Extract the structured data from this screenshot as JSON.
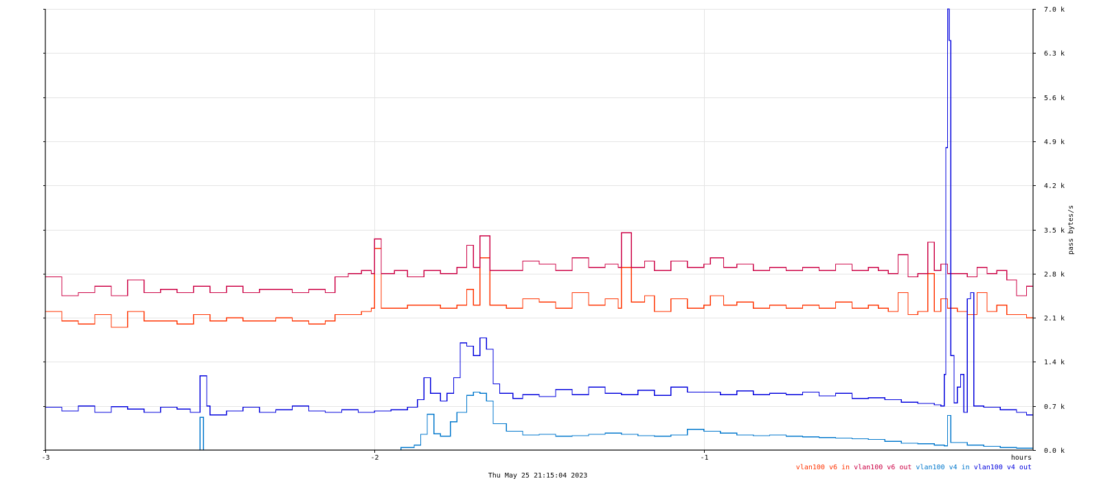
{
  "chart_data": {
    "type": "line",
    "ylabel": "pass bytes/s",
    "xlabel": "hours",
    "timestamp": "Thu May 25 21:15:04 2023",
    "xlim": [
      -3,
      0
    ],
    "ylim": [
      0,
      7000
    ],
    "x_ticks": [
      {
        "value": -3,
        "label": "-3"
      },
      {
        "value": -2,
        "label": "-2"
      },
      {
        "value": -1,
        "label": "-1"
      }
    ],
    "y_ticks": [
      {
        "value": 0,
        "label": "0.0 k"
      },
      {
        "value": 700,
        "label": "0.7 k"
      },
      {
        "value": 1400,
        "label": "1.4 k"
      },
      {
        "value": 2100,
        "label": "2.1 k"
      },
      {
        "value": 2800,
        "label": "2.8 k"
      },
      {
        "value": 3500,
        "label": "3.5 k"
      },
      {
        "value": 4200,
        "label": "4.2 k"
      },
      {
        "value": 4900,
        "label": "4.9 k"
      },
      {
        "value": 5600,
        "label": "5.6 k"
      },
      {
        "value": 6300,
        "label": "6.3 k"
      },
      {
        "value": 7000,
        "label": "7.0 k"
      }
    ],
    "grid": true,
    "legend_position": "bottom-right",
    "series": [
      {
        "name": "vlan100 v6 in",
        "color": "#ff3300",
        "points": [
          [
            -3.0,
            2200
          ],
          [
            -2.95,
            2050
          ],
          [
            -2.9,
            2000
          ],
          [
            -2.85,
            2150
          ],
          [
            -2.8,
            1950
          ],
          [
            -2.75,
            2200
          ],
          [
            -2.7,
            2050
          ],
          [
            -2.65,
            2050
          ],
          [
            -2.6,
            2000
          ],
          [
            -2.55,
            2150
          ],
          [
            -2.5,
            2050
          ],
          [
            -2.45,
            2100
          ],
          [
            -2.4,
            2050
          ],
          [
            -2.35,
            2050
          ],
          [
            -2.3,
            2100
          ],
          [
            -2.25,
            2050
          ],
          [
            -2.2,
            2000
          ],
          [
            -2.15,
            2050
          ],
          [
            -2.12,
            2150
          ],
          [
            -2.08,
            2150
          ],
          [
            -2.04,
            2200
          ],
          [
            -2.01,
            2250
          ],
          [
            -2.0,
            3200
          ],
          [
            -1.98,
            2250
          ],
          [
            -1.94,
            2250
          ],
          [
            -1.9,
            2300
          ],
          [
            -1.85,
            2300
          ],
          [
            -1.8,
            2250
          ],
          [
            -1.75,
            2300
          ],
          [
            -1.72,
            2550
          ],
          [
            -1.7,
            2300
          ],
          [
            -1.68,
            3050
          ],
          [
            -1.65,
            2300
          ],
          [
            -1.6,
            2250
          ],
          [
            -1.55,
            2400
          ],
          [
            -1.5,
            2350
          ],
          [
            -1.45,
            2250
          ],
          [
            -1.4,
            2500
          ],
          [
            -1.35,
            2300
          ],
          [
            -1.3,
            2400
          ],
          [
            -1.26,
            2250
          ],
          [
            -1.25,
            2900
          ],
          [
            -1.22,
            2350
          ],
          [
            -1.18,
            2450
          ],
          [
            -1.15,
            2200
          ],
          [
            -1.1,
            2400
          ],
          [
            -1.05,
            2250
          ],
          [
            -1.0,
            2300
          ],
          [
            -0.98,
            2450
          ],
          [
            -0.94,
            2300
          ],
          [
            -0.9,
            2350
          ],
          [
            -0.85,
            2250
          ],
          [
            -0.8,
            2300
          ],
          [
            -0.75,
            2250
          ],
          [
            -0.7,
            2300
          ],
          [
            -0.65,
            2250
          ],
          [
            -0.6,
            2350
          ],
          [
            -0.55,
            2250
          ],
          [
            -0.5,
            2300
          ],
          [
            -0.47,
            2250
          ],
          [
            -0.44,
            2200
          ],
          [
            -0.41,
            2500
          ],
          [
            -0.38,
            2150
          ],
          [
            -0.35,
            2200
          ],
          [
            -0.32,
            2800
          ],
          [
            -0.3,
            2200
          ],
          [
            -0.28,
            2400
          ],
          [
            -0.26,
            2250
          ],
          [
            -0.23,
            2200
          ],
          [
            -0.2,
            2150
          ],
          [
            -0.17,
            2500
          ],
          [
            -0.14,
            2200
          ],
          [
            -0.11,
            2300
          ],
          [
            -0.08,
            2150
          ],
          [
            -0.05,
            2150
          ],
          [
            -0.02,
            2100
          ],
          [
            0.0,
            2100
          ]
        ]
      },
      {
        "name": "vlan100 v6 out",
        "color": "#cc0044",
        "points": [
          [
            -3.0,
            2750
          ],
          [
            -2.95,
            2450
          ],
          [
            -2.9,
            2500
          ],
          [
            -2.85,
            2600
          ],
          [
            -2.8,
            2450
          ],
          [
            -2.75,
            2700
          ],
          [
            -2.7,
            2500
          ],
          [
            -2.65,
            2550
          ],
          [
            -2.6,
            2500
          ],
          [
            -2.55,
            2600
          ],
          [
            -2.5,
            2500
          ],
          [
            -2.45,
            2600
          ],
          [
            -2.4,
            2500
          ],
          [
            -2.35,
            2550
          ],
          [
            -2.3,
            2550
          ],
          [
            -2.25,
            2500
          ],
          [
            -2.2,
            2550
          ],
          [
            -2.15,
            2500
          ],
          [
            -2.12,
            2750
          ],
          [
            -2.08,
            2800
          ],
          [
            -2.04,
            2850
          ],
          [
            -2.01,
            2800
          ],
          [
            -2.0,
            3350
          ],
          [
            -1.98,
            2800
          ],
          [
            -1.94,
            2850
          ],
          [
            -1.9,
            2750
          ],
          [
            -1.85,
            2850
          ],
          [
            -1.8,
            2800
          ],
          [
            -1.75,
            2900
          ],
          [
            -1.72,
            3250
          ],
          [
            -1.7,
            2900
          ],
          [
            -1.68,
            3400
          ],
          [
            -1.65,
            2850
          ],
          [
            -1.6,
            2850
          ],
          [
            -1.55,
            3000
          ],
          [
            -1.5,
            2950
          ],
          [
            -1.45,
            2850
          ],
          [
            -1.4,
            3050
          ],
          [
            -1.35,
            2900
          ],
          [
            -1.3,
            2950
          ],
          [
            -1.26,
            2900
          ],
          [
            -1.25,
            3450
          ],
          [
            -1.22,
            2900
          ],
          [
            -1.18,
            3000
          ],
          [
            -1.15,
            2850
          ],
          [
            -1.1,
            3000
          ],
          [
            -1.05,
            2900
          ],
          [
            -1.0,
            2950
          ],
          [
            -0.98,
            3050
          ],
          [
            -0.94,
            2900
          ],
          [
            -0.9,
            2950
          ],
          [
            -0.85,
            2850
          ],
          [
            -0.8,
            2900
          ],
          [
            -0.75,
            2850
          ],
          [
            -0.7,
            2900
          ],
          [
            -0.65,
            2850
          ],
          [
            -0.6,
            2950
          ],
          [
            -0.55,
            2850
          ],
          [
            -0.5,
            2900
          ],
          [
            -0.47,
            2850
          ],
          [
            -0.44,
            2800
          ],
          [
            -0.41,
            3100
          ],
          [
            -0.38,
            2750
          ],
          [
            -0.35,
            2800
          ],
          [
            -0.32,
            3300
          ],
          [
            -0.3,
            2850
          ],
          [
            -0.28,
            2950
          ],
          [
            -0.26,
            2800
          ],
          [
            -0.23,
            2800
          ],
          [
            -0.2,
            2750
          ],
          [
            -0.17,
            2900
          ],
          [
            -0.14,
            2800
          ],
          [
            -0.11,
            2850
          ],
          [
            -0.08,
            2700
          ],
          [
            -0.05,
            2450
          ],
          [
            -0.02,
            2600
          ],
          [
            0.0,
            2600
          ]
        ]
      },
      {
        "name": "vlan100 v4 in",
        "color": "#0077cc",
        "points": [
          [
            -3.0,
            0
          ],
          [
            -2.55,
            0
          ],
          [
            -2.53,
            520
          ],
          [
            -2.52,
            0
          ],
          [
            -2.0,
            0
          ],
          [
            -1.95,
            0
          ],
          [
            -1.92,
            40
          ],
          [
            -1.88,
            80
          ],
          [
            -1.86,
            250
          ],
          [
            -1.84,
            570
          ],
          [
            -1.82,
            260
          ],
          [
            -1.8,
            220
          ],
          [
            -1.77,
            450
          ],
          [
            -1.75,
            600
          ],
          [
            -1.72,
            870
          ],
          [
            -1.7,
            920
          ],
          [
            -1.68,
            900
          ],
          [
            -1.66,
            780
          ],
          [
            -1.64,
            420
          ],
          [
            -1.6,
            300
          ],
          [
            -1.55,
            240
          ],
          [
            -1.5,
            250
          ],
          [
            -1.45,
            220
          ],
          [
            -1.4,
            230
          ],
          [
            -1.35,
            250
          ],
          [
            -1.3,
            270
          ],
          [
            -1.25,
            250
          ],
          [
            -1.2,
            230
          ],
          [
            -1.15,
            220
          ],
          [
            -1.1,
            240
          ],
          [
            -1.05,
            330
          ],
          [
            -1.0,
            300
          ],
          [
            -0.95,
            270
          ],
          [
            -0.9,
            240
          ],
          [
            -0.85,
            230
          ],
          [
            -0.8,
            240
          ],
          [
            -0.75,
            220
          ],
          [
            -0.7,
            210
          ],
          [
            -0.65,
            200
          ],
          [
            -0.6,
            190
          ],
          [
            -0.55,
            180
          ],
          [
            -0.5,
            170
          ],
          [
            -0.45,
            140
          ],
          [
            -0.4,
            110
          ],
          [
            -0.35,
            100
          ],
          [
            -0.3,
            80
          ],
          [
            -0.27,
            70
          ],
          [
            -0.26,
            550
          ],
          [
            -0.25,
            120
          ],
          [
            -0.2,
            80
          ],
          [
            -0.15,
            60
          ],
          [
            -0.1,
            40
          ],
          [
            -0.05,
            30
          ],
          [
            0.0,
            40
          ]
        ]
      },
      {
        "name": "vlan100 v4 out",
        "color": "#0000dd",
        "points": [
          [
            -3.0,
            680
          ],
          [
            -2.95,
            620
          ],
          [
            -2.9,
            700
          ],
          [
            -2.85,
            600
          ],
          [
            -2.8,
            690
          ],
          [
            -2.75,
            650
          ],
          [
            -2.7,
            600
          ],
          [
            -2.65,
            680
          ],
          [
            -2.6,
            650
          ],
          [
            -2.56,
            600
          ],
          [
            -2.53,
            1180
          ],
          [
            -2.51,
            700
          ],
          [
            -2.5,
            560
          ],
          [
            -2.45,
            620
          ],
          [
            -2.4,
            680
          ],
          [
            -2.35,
            600
          ],
          [
            -2.3,
            640
          ],
          [
            -2.25,
            700
          ],
          [
            -2.2,
            620
          ],
          [
            -2.15,
            600
          ],
          [
            -2.1,
            640
          ],
          [
            -2.05,
            600
          ],
          [
            -2.0,
            620
          ],
          [
            -1.95,
            640
          ],
          [
            -1.9,
            680
          ],
          [
            -1.87,
            800
          ],
          [
            -1.85,
            1150
          ],
          [
            -1.83,
            900
          ],
          [
            -1.8,
            780
          ],
          [
            -1.78,
            900
          ],
          [
            -1.76,
            1150
          ],
          [
            -1.74,
            1700
          ],
          [
            -1.72,
            1650
          ],
          [
            -1.7,
            1500
          ],
          [
            -1.68,
            1780
          ],
          [
            -1.66,
            1600
          ],
          [
            -1.64,
            1050
          ],
          [
            -1.62,
            900
          ],
          [
            -1.58,
            820
          ],
          [
            -1.55,
            880
          ],
          [
            -1.5,
            850
          ],
          [
            -1.45,
            960
          ],
          [
            -1.4,
            880
          ],
          [
            -1.35,
            1000
          ],
          [
            -1.3,
            900
          ],
          [
            -1.25,
            880
          ],
          [
            -1.2,
            950
          ],
          [
            -1.15,
            870
          ],
          [
            -1.1,
            1000
          ],
          [
            -1.05,
            920
          ],
          [
            -1.0,
            920
          ],
          [
            -0.95,
            880
          ],
          [
            -0.9,
            940
          ],
          [
            -0.85,
            880
          ],
          [
            -0.8,
            900
          ],
          [
            -0.75,
            880
          ],
          [
            -0.7,
            920
          ],
          [
            -0.65,
            860
          ],
          [
            -0.6,
            900
          ],
          [
            -0.55,
            820
          ],
          [
            -0.5,
            830
          ],
          [
            -0.45,
            800
          ],
          [
            -0.4,
            760
          ],
          [
            -0.35,
            740
          ],
          [
            -0.3,
            720
          ],
          [
            -0.28,
            700
          ],
          [
            -0.27,
            1200
          ],
          [
            -0.265,
            4800
          ],
          [
            -0.26,
            7000
          ],
          [
            -0.255,
            6500
          ],
          [
            -0.25,
            1500
          ],
          [
            -0.24,
            750
          ],
          [
            -0.23,
            1000
          ],
          [
            -0.22,
            1200
          ],
          [
            -0.21,
            600
          ],
          [
            -0.2,
            2400
          ],
          [
            -0.19,
            2500
          ],
          [
            -0.18,
            700
          ],
          [
            -0.15,
            680
          ],
          [
            -0.1,
            640
          ],
          [
            -0.05,
            600
          ],
          [
            -0.02,
            560
          ],
          [
            0.0,
            780
          ]
        ]
      }
    ]
  }
}
